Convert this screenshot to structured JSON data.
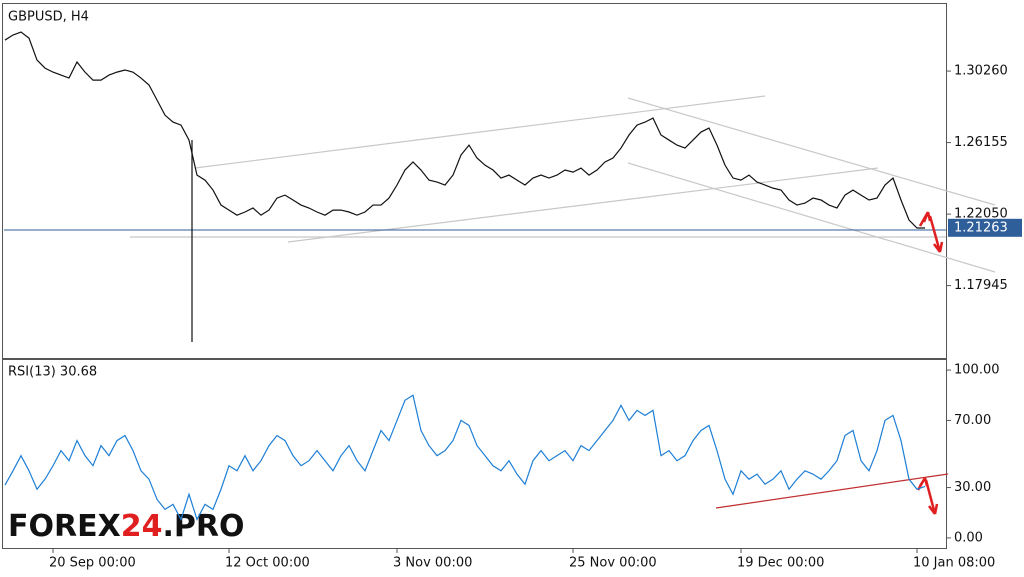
{
  "chart_data": [
    {
      "type": "line",
      "title": "GBPUSD, H4",
      "color": "#111111",
      "categories": [
        null,
        null,
        null,
        null,
        null,
        null,
        "20 Sep 00:00",
        null,
        null,
        null,
        null,
        null,
        null,
        null,
        null,
        null,
        null,
        null,
        null,
        null,
        null,
        null,
        null,
        null,
        null,
        null,
        null,
        null,
        "12 Oct 00:00",
        null,
        null,
        null,
        null,
        null,
        null,
        null,
        null,
        null,
        null,
        null,
        null,
        null,
        null,
        null,
        null,
        null,
        null,
        null,
        null,
        "3 Nov 00:00",
        null,
        null,
        null,
        null,
        null,
        null,
        null,
        null,
        null,
        null,
        null,
        null,
        null,
        null,
        null,
        null,
        null,
        null,
        null,
        null,
        null,
        "25 Nov 00:00",
        null,
        null,
        null,
        null,
        null,
        null,
        null,
        null,
        null,
        null,
        null,
        null,
        null,
        null,
        null,
        null,
        null,
        null,
        null,
        null,
        "19 Dec 00:00",
        null,
        null,
        null,
        null,
        null,
        null,
        null,
        null,
        null,
        null,
        null,
        null,
        null,
        null,
        null,
        null,
        null,
        null,
        null,
        null,
        null,
        "10 Jan 08:00",
        null
      ],
      "values": [
        1.3204,
        1.3233,
        1.325,
        1.3215,
        1.3089,
        1.3043,
        1.302,
        1.3003,
        1.2986,
        1.3078,
        1.302,
        1.2974,
        1.2974,
        1.3003,
        1.302,
        1.3032,
        1.302,
        1.2986,
        1.2946,
        1.286,
        1.2773,
        1.2733,
        1.2716,
        1.263,
        1.2429,
        1.24,
        1.2343,
        1.2257,
        1.2228,
        1.2199,
        1.2217,
        1.224,
        1.2199,
        1.2228,
        1.2297,
        1.2314,
        1.2286,
        1.2257,
        1.224,
        1.2217,
        1.2199,
        1.2228,
        1.2228,
        1.2217,
        1.2199,
        1.2217,
        1.2257,
        1.2257,
        1.2297,
        1.2372,
        1.2458,
        1.2504,
        1.2458,
        1.24,
        1.2389,
        1.2372,
        1.2429,
        1.2544,
        1.2601,
        1.2527,
        1.2486,
        1.2458,
        1.2412,
        1.2429,
        1.24,
        1.2372,
        1.2412,
        1.2429,
        1.2412,
        1.2429,
        1.2458,
        1.2446,
        1.2469,
        1.2429,
        1.2458,
        1.2504,
        1.2527,
        1.2584,
        1.2659,
        1.2716,
        1.2733,
        1.2756,
        1.2659,
        1.263,
        1.2601,
        1.2584,
        1.263,
        1.2676,
        1.2699,
        1.2601,
        1.2486,
        1.2412,
        1.24,
        1.2429,
        1.2389,
        1.2372,
        1.2354,
        1.2343,
        1.2286,
        1.2257,
        1.2268,
        1.2297,
        1.2286,
        1.2257,
        1.224,
        1.2314,
        1.2343,
        1.2314,
        1.2286,
        1.2297,
        1.2372,
        1.2412,
        1.2286,
        1.2171,
        1.2125,
        1.2125
      ],
      "current_price": 1.21263,
      "ylim": [
        1.1379,
        1.3411
      ],
      "yticks": [
        {
          "value": 1.3026,
          "label": "1.30260"
        },
        {
          "value": 1.26155,
          "label": "1.26155"
        },
        {
          "value": 1.2205,
          "label": "1.22050"
        },
        {
          "value": 1.17945,
          "label": "1.17945"
        }
      ]
    },
    {
      "type": "line",
      "title": "RSI(13) 30.68",
      "color": "#1e7fd6",
      "values": [
        31.5,
        40,
        49,
        40,
        29,
        35,
        43,
        52,
        46,
        58,
        49,
        43,
        55,
        49,
        58,
        61,
        52,
        40,
        35,
        23,
        17,
        20,
        11,
        26,
        11,
        20,
        17,
        29,
        43,
        40,
        49,
        40,
        46,
        55,
        61,
        58,
        49,
        43,
        46,
        52,
        46,
        40,
        49,
        55,
        46,
        40,
        52,
        64,
        58,
        70,
        82,
        85,
        64,
        55,
        49,
        52,
        58,
        70,
        67,
        55,
        49,
        43,
        40,
        46,
        38,
        32,
        46,
        52,
        46,
        49,
        52,
        46,
        55,
        52,
        58,
        64,
        70,
        79,
        70,
        76,
        73,
        76,
        49,
        52,
        46,
        49,
        58,
        64,
        67,
        52,
        35,
        26,
        40,
        35,
        38,
        32,
        35,
        40,
        29,
        35,
        40,
        38,
        35,
        40,
        46,
        61,
        64,
        46,
        40,
        52,
        70,
        73,
        58,
        35,
        29,
        30.68
      ],
      "ylim": [
        -6,
        106
      ],
      "yticks": [
        {
          "value": 100,
          "label": "100.00"
        },
        {
          "value": 70,
          "label": "70.00"
        },
        {
          "value": 30,
          "label": "30.00"
        },
        {
          "value": 0,
          "label": "0.00"
        }
      ]
    }
  ],
  "watermark": {
    "part1": "FOREX",
    "part2": "24",
    "part3": ".PRO"
  }
}
